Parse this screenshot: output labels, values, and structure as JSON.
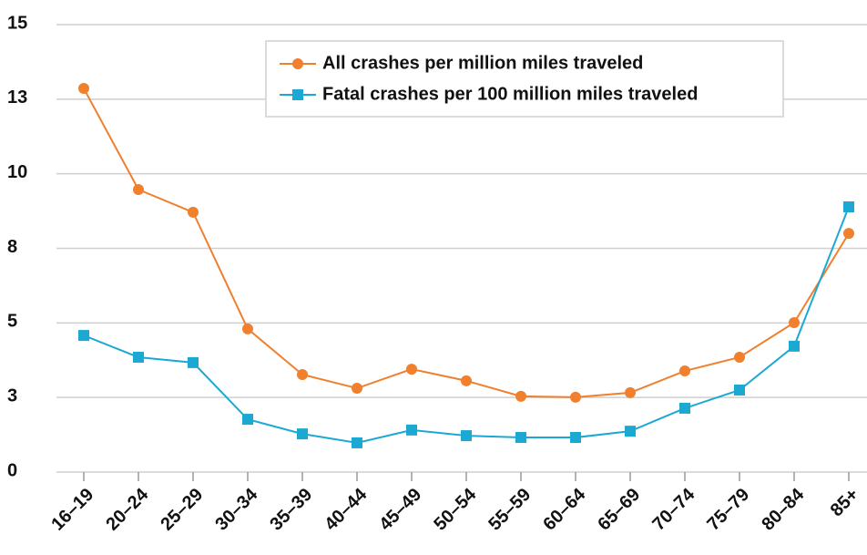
{
  "chart_data": {
    "type": "line",
    "categories": [
      "16–19",
      "20–24",
      "25–29",
      "30–34",
      "35–39",
      "40–44",
      "45–49",
      "50–54",
      "55–59",
      "60–64",
      "65–69",
      "70–74",
      "75–79",
      "80–84",
      "85+"
    ],
    "series": [
      {
        "name": "All crashes per million miles traveled",
        "color": "#f07f2e",
        "marker": "circle",
        "values": [
          12.86,
          9.47,
          8.71,
          4.8,
          3.27,
          2.81,
          3.45,
          3.06,
          2.54,
          2.51,
          2.66,
          3.39,
          3.85,
          5.01,
          8.0
        ]
      },
      {
        "name": "Fatal crashes per 100 million miles traveled",
        "color": "#1ba9d3",
        "marker": "square",
        "values": [
          4.58,
          3.85,
          3.67,
          1.77,
          1.28,
          0.98,
          1.41,
          1.22,
          1.16,
          1.16,
          1.37,
          2.14,
          2.75,
          4.22,
          8.89
        ]
      }
    ],
    "ylim": [
      0,
      15
    ],
    "yticks": [
      0,
      {
        "value": 2.5,
        "label": "3"
      },
      5,
      {
        "value": 7.5,
        "label": "8"
      },
      10,
      {
        "value": 12.5,
        "label": "13"
      },
      15
    ],
    "grid": true,
    "legend": "top-right"
  }
}
